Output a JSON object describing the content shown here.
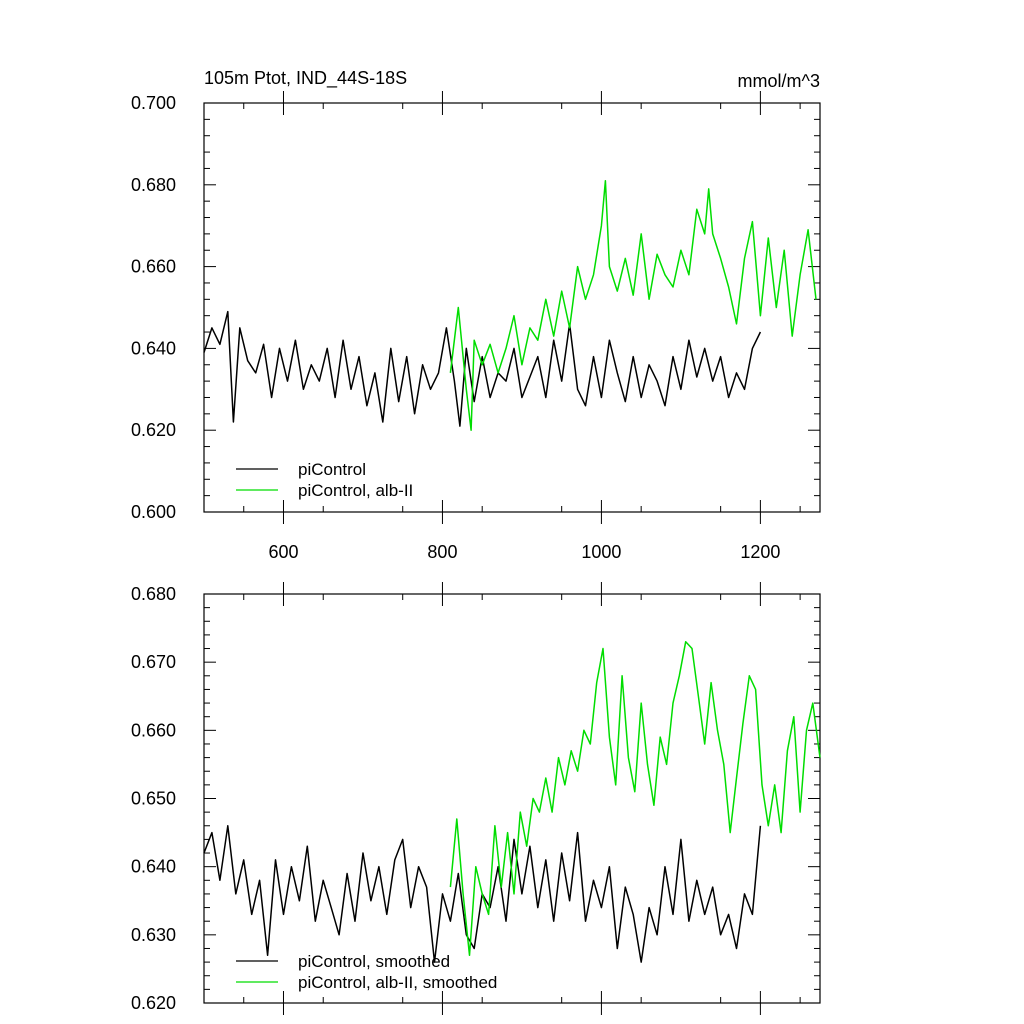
{
  "chart_data": [
    {
      "type": "line",
      "title": "105m Ptot, IND_44S-18S",
      "units": "mmol/m^3",
      "xlim": [
        500,
        1275
      ],
      "ylim": [
        0.6,
        0.7
      ],
      "x_ticks": [
        600,
        800,
        1000,
        1200
      ],
      "x_tick_labels": [
        "600",
        "800",
        "1000",
        "1200"
      ],
      "y_ticks": [
        0.6,
        0.62,
        0.64,
        0.66,
        0.68,
        0.7
      ],
      "y_tick_labels": [
        "0.600",
        "0.620",
        "0.640",
        "0.660",
        "0.680",
        "0.700"
      ],
      "legend": [
        "piControl",
        "piControl, alb-II"
      ],
      "legend_position": "bottom-left",
      "series": [
        {
          "name": "piControl",
          "color": "#000000",
          "x": [
            500,
            510,
            520,
            530,
            537,
            545,
            555,
            565,
            575,
            585,
            595,
            605,
            615,
            625,
            635,
            645,
            655,
            665,
            675,
            685,
            695,
            705,
            715,
            725,
            735,
            745,
            755,
            765,
            775,
            785,
            795,
            805,
            815,
            822,
            830,
            840,
            850,
            860,
            870,
            880,
            890,
            900,
            910,
            920,
            930,
            940,
            950,
            960,
            970,
            980,
            990,
            1000,
            1010,
            1020,
            1030,
            1040,
            1050,
            1060,
            1070,
            1080,
            1090,
            1100,
            1110,
            1120,
            1130,
            1140,
            1150,
            1160,
            1170,
            1180,
            1190,
            1200
          ],
          "values": [
            0.639,
            0.645,
            0.641,
            0.649,
            0.622,
            0.645,
            0.637,
            0.634,
            0.641,
            0.628,
            0.64,
            0.632,
            0.642,
            0.63,
            0.636,
            0.632,
            0.64,
            0.628,
            0.642,
            0.63,
            0.638,
            0.626,
            0.634,
            0.622,
            0.64,
            0.627,
            0.638,
            0.624,
            0.636,
            0.63,
            0.634,
            0.645,
            0.632,
            0.621,
            0.64,
            0.627,
            0.638,
            0.628,
            0.634,
            0.632,
            0.64,
            0.628,
            0.633,
            0.638,
            0.628,
            0.642,
            0.632,
            0.646,
            0.63,
            0.626,
            0.638,
            0.628,
            0.642,
            0.634,
            0.627,
            0.638,
            0.628,
            0.636,
            0.632,
            0.626,
            0.638,
            0.63,
            0.642,
            0.633,
            0.64,
            0.632,
            0.638,
            0.628,
            0.634,
            0.63,
            0.64,
            0.644
          ]
        },
        {
          "name": "piControl, alb-II",
          "color": "#00dd00",
          "x": [
            810,
            820,
            830,
            836,
            840,
            850,
            860,
            870,
            880,
            890,
            900,
            910,
            920,
            930,
            940,
            950,
            960,
            970,
            980,
            990,
            1000,
            1005,
            1010,
            1020,
            1030,
            1040,
            1050,
            1060,
            1070,
            1080,
            1090,
            1100,
            1110,
            1120,
            1130,
            1135,
            1140,
            1150,
            1160,
            1170,
            1180,
            1190,
            1200,
            1210,
            1220,
            1230,
            1240,
            1250,
            1260,
            1270
          ],
          "values": [
            0.634,
            0.65,
            0.63,
            0.62,
            0.642,
            0.636,
            0.641,
            0.634,
            0.64,
            0.648,
            0.636,
            0.645,
            0.642,
            0.652,
            0.643,
            0.654,
            0.645,
            0.66,
            0.652,
            0.658,
            0.67,
            0.681,
            0.66,
            0.654,
            0.662,
            0.653,
            0.668,
            0.652,
            0.663,
            0.658,
            0.655,
            0.664,
            0.658,
            0.674,
            0.668,
            0.679,
            0.668,
            0.662,
            0.655,
            0.646,
            0.662,
            0.671,
            0.648,
            0.667,
            0.65,
            0.664,
            0.643,
            0.658,
            0.669,
            0.652
          ]
        }
      ]
    },
    {
      "type": "line",
      "title": "",
      "xlim": [
        500,
        1275
      ],
      "ylim": [
        0.62,
        0.68
      ],
      "x_ticks": [
        600,
        800,
        1000,
        1200
      ],
      "y_ticks": [
        0.62,
        0.63,
        0.64,
        0.65,
        0.66,
        0.67,
        0.68
      ],
      "y_tick_labels": [
        "0.620",
        "0.630",
        "0.640",
        "0.650",
        "0.660",
        "0.670",
        "0.680"
      ],
      "legend": [
        "piControl, smoothed",
        "piControl, alb-II, smoothed"
      ],
      "legend_position": "bottom-left",
      "series": [
        {
          "name": "piControl, smoothed",
          "color": "#000000",
          "x": [
            500,
            510,
            520,
            530,
            540,
            550,
            560,
            570,
            580,
            590,
            600,
            610,
            620,
            630,
            640,
            650,
            660,
            670,
            680,
            690,
            700,
            710,
            720,
            730,
            740,
            750,
            760,
            770,
            780,
            790,
            800,
            810,
            820,
            830,
            840,
            850,
            860,
            870,
            880,
            890,
            900,
            910,
            920,
            930,
            940,
            950,
            960,
            970,
            980,
            990,
            1000,
            1010,
            1020,
            1030,
            1040,
            1050,
            1060,
            1070,
            1080,
            1090,
            1100,
            1110,
            1120,
            1130,
            1140,
            1150,
            1160,
            1170,
            1180,
            1190,
            1200
          ],
          "values": [
            0.642,
            0.645,
            0.638,
            0.646,
            0.636,
            0.641,
            0.633,
            0.638,
            0.627,
            0.641,
            0.633,
            0.64,
            0.635,
            0.643,
            0.632,
            0.638,
            0.634,
            0.63,
            0.639,
            0.632,
            0.642,
            0.635,
            0.64,
            0.633,
            0.641,
            0.644,
            0.634,
            0.64,
            0.637,
            0.626,
            0.636,
            0.632,
            0.639,
            0.63,
            0.628,
            0.636,
            0.634,
            0.64,
            0.632,
            0.644,
            0.636,
            0.643,
            0.634,
            0.641,
            0.632,
            0.642,
            0.635,
            0.645,
            0.632,
            0.638,
            0.634,
            0.64,
            0.628,
            0.637,
            0.633,
            0.626,
            0.634,
            0.63,
            0.64,
            0.633,
            0.644,
            0.632,
            0.638,
            0.633,
            0.637,
            0.63,
            0.633,
            0.628,
            0.636,
            0.633,
            0.646
          ]
        },
        {
          "name": "piControl, alb-II, smoothed",
          "color": "#00dd00",
          "x": [
            810,
            818,
            826,
            834,
            842,
            850,
            858,
            866,
            874,
            882,
            890,
            898,
            906,
            914,
            922,
            930,
            938,
            946,
            954,
            962,
            970,
            978,
            986,
            994,
            1002,
            1010,
            1018,
            1026,
            1034,
            1042,
            1050,
            1058,
            1066,
            1074,
            1082,
            1090,
            1098,
            1106,
            1114,
            1122,
            1130,
            1138,
            1146,
            1154,
            1162,
            1170,
            1178,
            1186,
            1194,
            1202,
            1210,
            1218,
            1226,
            1234,
            1242,
            1250,
            1258,
            1266,
            1275
          ],
          "values": [
            0.637,
            0.647,
            0.636,
            0.627,
            0.64,
            0.636,
            0.633,
            0.646,
            0.637,
            0.645,
            0.636,
            0.648,
            0.643,
            0.65,
            0.648,
            0.653,
            0.648,
            0.656,
            0.652,
            0.657,
            0.654,
            0.66,
            0.658,
            0.667,
            0.672,
            0.659,
            0.652,
            0.668,
            0.656,
            0.651,
            0.664,
            0.655,
            0.649,
            0.659,
            0.655,
            0.664,
            0.668,
            0.673,
            0.672,
            0.665,
            0.658,
            0.667,
            0.66,
            0.655,
            0.645,
            0.653,
            0.661,
            0.668,
            0.666,
            0.652,
            0.646,
            0.652,
            0.645,
            0.657,
            0.662,
            0.648,
            0.66,
            0.664,
            0.656
          ]
        }
      ]
    }
  ]
}
